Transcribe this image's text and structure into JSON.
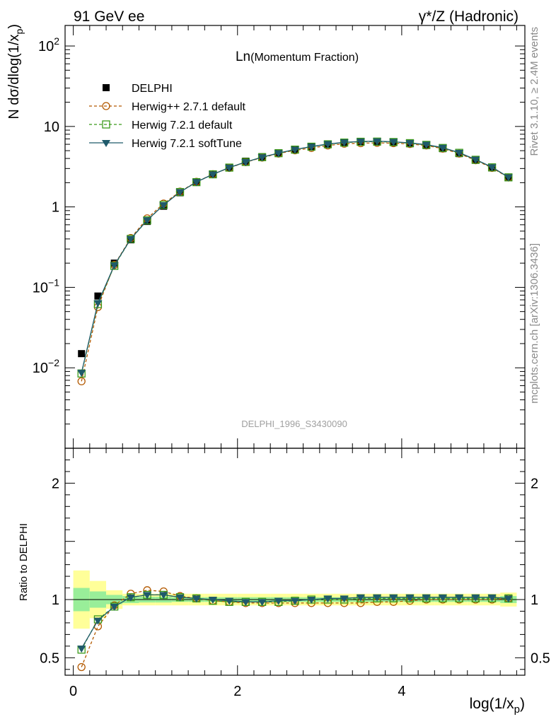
{
  "header": {
    "left": "91 GeV ee",
    "right": "γ*/Z (Hadronic)"
  },
  "side": {
    "rivet": "Rivet 3.1.10, ≥ 2.4M events",
    "source": "mcplots.cern.ch [arXiv:1306.3436]"
  },
  "chart_data": {
    "type": "line",
    "title_main": "Ln",
    "title_sub": "(Momentum Fraction)",
    "analysis_id": "DELPHI_1996_S3430090",
    "ylabel": "N dσ/dlog(1/x_p)",
    "ratio_ylabel": "Ratio to DELPHI",
    "xlabel": "log(1/x_p)",
    "xlim": [
      -0.1,
      5.5
    ],
    "ylim": [
      0.001,
      180
    ],
    "yscale": "log",
    "ratio_ylim": [
      0.35,
      2.3
    ],
    "x_ticks": [
      "0",
      "2",
      "4"
    ],
    "y_ticks": [
      "10^-2",
      "10^-1",
      "1",
      "10",
      "10^2"
    ],
    "ratio_y_ticks": [
      "0.5",
      "1",
      "2"
    ],
    "legend_position": "top-left",
    "x": [
      0.1,
      0.3,
      0.5,
      0.7,
      0.9,
      1.1,
      1.3,
      1.5,
      1.7,
      1.9,
      2.1,
      2.3,
      2.5,
      2.7,
      2.9,
      3.1,
      3.3,
      3.5,
      3.7,
      3.9,
      4.1,
      4.3,
      4.5,
      4.7,
      4.9,
      5.1,
      5.3
    ],
    "series": [
      {
        "name": "DELPHI",
        "style": "data",
        "color": "#000000",
        "values": [
          0.015,
          0.078,
          0.2,
          0.39,
          0.66,
          1.02,
          1.5,
          2.02,
          2.55,
          3.1,
          3.7,
          4.2,
          4.7,
          5.2,
          5.6,
          6.0,
          6.3,
          6.4,
          6.4,
          6.3,
          6.1,
          5.8,
          5.3,
          4.6,
          3.8,
          3.05,
          2.3
        ]
      },
      {
        "name": "Herwig++ 2.7.1 default",
        "style": "circle-dashed",
        "color": "#b35900",
        "values": [
          0.0068,
          0.057,
          0.19,
          0.41,
          0.72,
          1.1,
          1.55,
          2.05,
          2.55,
          3.05,
          3.6,
          4.1,
          4.6,
          5.05,
          5.4,
          5.8,
          6.1,
          6.2,
          6.25,
          6.2,
          6.05,
          5.8,
          5.3,
          4.6,
          3.8,
          3.05,
          2.32
        ]
      },
      {
        "name": "Herwig 7.2.1 default",
        "style": "square-dashed",
        "color": "#3a9a1a",
        "values": [
          0.0085,
          0.062,
          0.185,
          0.4,
          0.68,
          1.06,
          1.53,
          2.03,
          2.54,
          3.08,
          3.62,
          4.15,
          4.65,
          5.15,
          5.6,
          6.0,
          6.3,
          6.45,
          6.48,
          6.4,
          6.2,
          5.9,
          5.4,
          4.7,
          3.85,
          3.1,
          2.33
        ]
      },
      {
        "name": "Herwig 7.2.1 softTune",
        "style": "triangle-solid",
        "color": "#1f5a6b",
        "values": [
          0.0087,
          0.064,
          0.188,
          0.4,
          0.685,
          1.055,
          1.53,
          2.04,
          2.54,
          3.08,
          3.62,
          4.15,
          4.67,
          5.17,
          5.62,
          6.05,
          6.35,
          6.5,
          6.55,
          6.45,
          6.25,
          5.95,
          5.45,
          4.72,
          3.88,
          3.12,
          2.34
        ]
      }
    ],
    "ratio_series": [
      {
        "name": "Herwig++ 2.7.1 default",
        "values": [
          0.42,
          0.77,
          0.95,
          1.05,
          1.08,
          1.07,
          1.03,
          1.01,
          0.99,
          0.98,
          0.97,
          0.97,
          0.97,
          0.97,
          0.97,
          0.97,
          0.97,
          0.97,
          0.98,
          0.98,
          0.99,
          1.0,
          1.0,
          1.0,
          1.0,
          1.0,
          1.01
        ]
      },
      {
        "name": "Herwig 7.2.1 default",
        "values": [
          0.57,
          0.83,
          0.94,
          1.02,
          1.04,
          1.04,
          1.02,
          1.01,
          0.99,
          0.98,
          0.98,
          0.98,
          0.98,
          0.99,
          1.0,
          1.0,
          1.0,
          1.01,
          1.01,
          1.01,
          1.01,
          1.01,
          1.01,
          1.01,
          1.01,
          1.01,
          1.01
        ]
      },
      {
        "name": "Herwig 7.2.1 softTune",
        "values": [
          0.58,
          0.82,
          0.94,
          1.02,
          1.04,
          1.04,
          1.02,
          1.01,
          1.0,
          0.99,
          0.98,
          0.98,
          0.99,
          0.99,
          1.0,
          1.01,
          1.01,
          1.02,
          1.02,
          1.02,
          1.02,
          1.02,
          1.02,
          1.02,
          1.02,
          1.02,
          1.01
        ]
      }
    ],
    "ratio_band_yellow": [
      0.25,
      0.16,
      0.08,
      0.05,
      0.05,
      0.05,
      0.05,
      0.05,
      0.05,
      0.05,
      0.05,
      0.05,
      0.05,
      0.05,
      0.05,
      0.05,
      0.05,
      0.05,
      0.05,
      0.05,
      0.05,
      0.05,
      0.05,
      0.05,
      0.05,
      0.05,
      0.06
    ],
    "ratio_band_green": [
      0.1,
      0.07,
      0.04,
      0.03,
      0.025,
      0.025,
      0.02,
      0.02,
      0.02,
      0.02,
      0.02,
      0.02,
      0.02,
      0.02,
      0.02,
      0.02,
      0.02,
      0.02,
      0.02,
      0.02,
      0.02,
      0.02,
      0.02,
      0.02,
      0.02,
      0.02,
      0.03
    ]
  }
}
